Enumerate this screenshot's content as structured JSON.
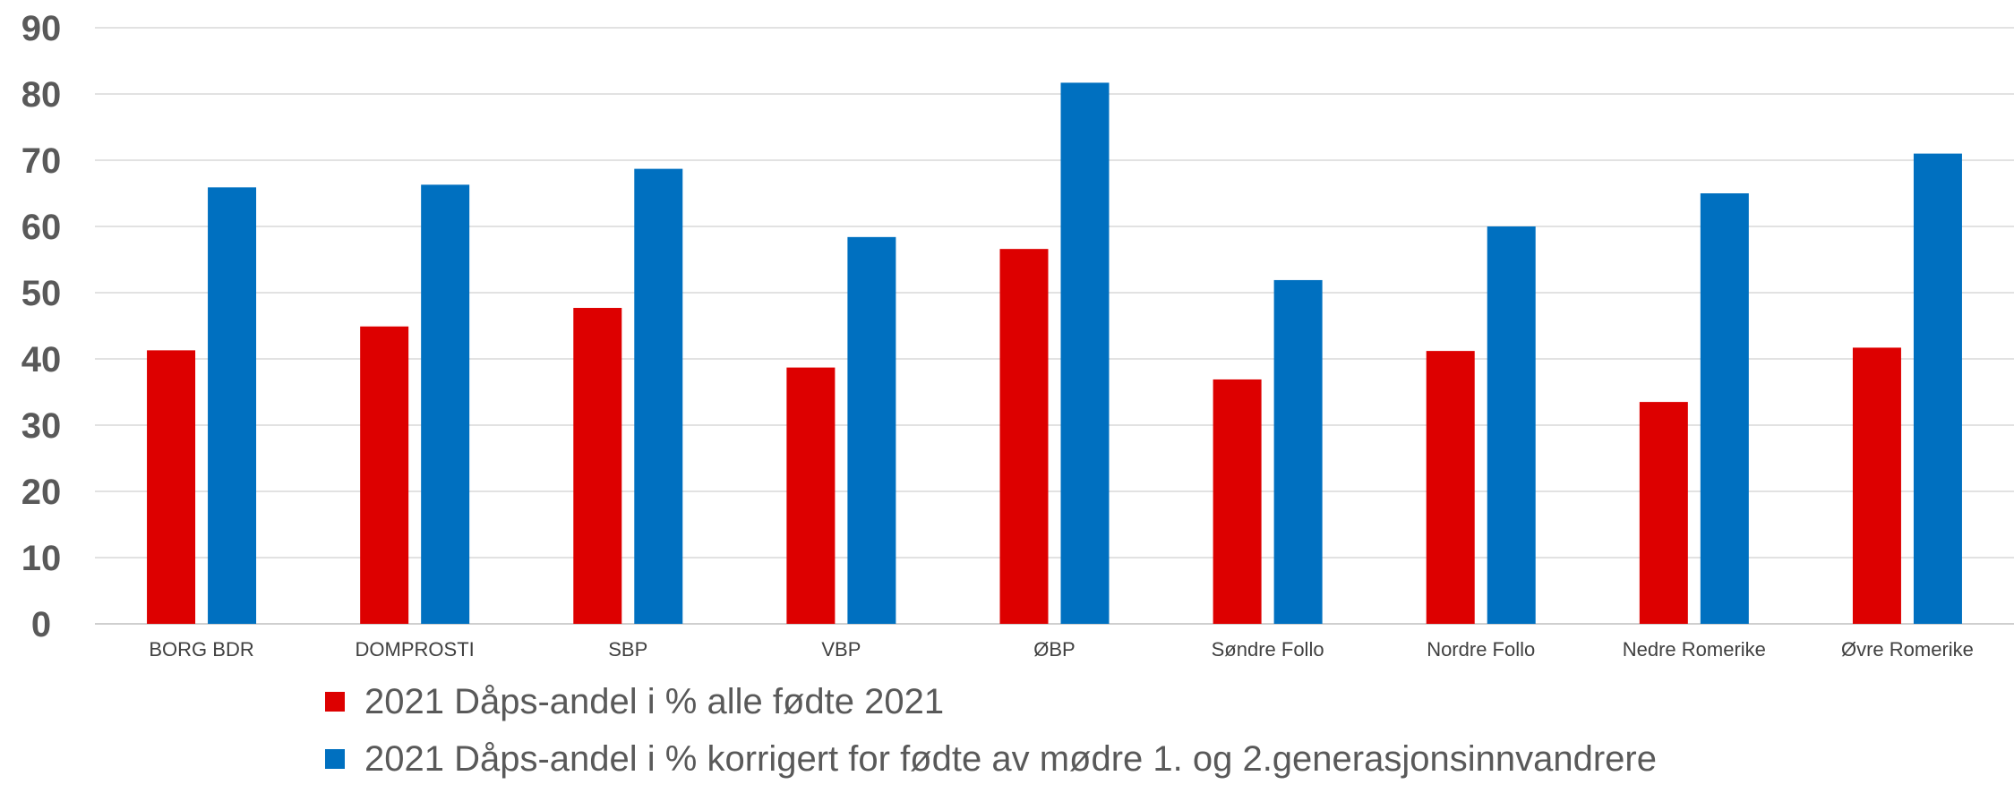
{
  "chart_data": {
    "type": "bar",
    "categories": [
      "BORG BDR",
      "DOMPROSTI",
      "SBP",
      "VBP",
      "ØBP",
      "Søndre Follo",
      "Nordre Follo",
      "Nedre Romerike",
      "Øvre Romerike"
    ],
    "series": [
      {
        "name": "2021 Dåps-andel i % alle fødte 2021",
        "color": "#dd0000",
        "values": [
          41.3,
          44.9,
          47.7,
          38.7,
          56.6,
          36.9,
          41.2,
          33.5,
          41.7
        ]
      },
      {
        "name": "2021 Dåps-andel i % korrigert for fødte av mødre 1. og 2.generasjonsinnvandrere",
        "color": "#0070c0",
        "values": [
          65.9,
          66.3,
          68.7,
          58.4,
          81.7,
          51.9,
          60.0,
          65.0,
          71.0
        ]
      }
    ],
    "yticks": [
      "0",
      "10",
      "20",
      "30",
      "40",
      "50",
      "60",
      "70",
      "80",
      "90"
    ],
    "ylim": [
      0,
      90
    ],
    "grid": true,
    "legend_position": "bottom"
  }
}
